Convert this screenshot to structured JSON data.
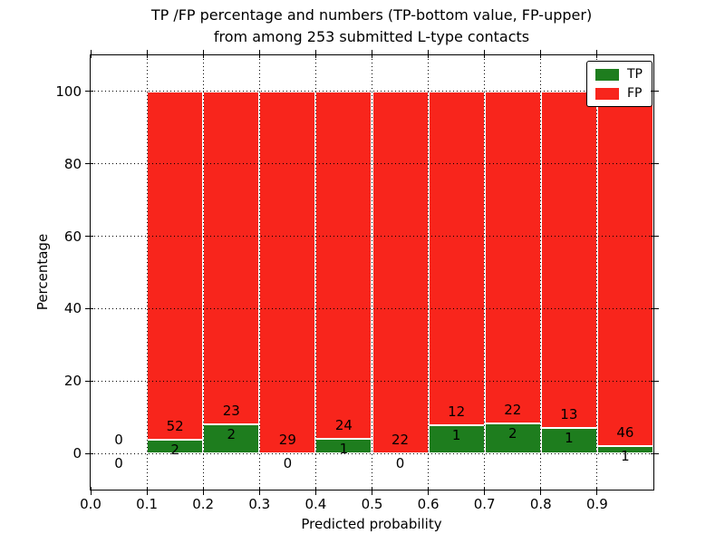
{
  "title": {
    "line1": "TP /FP percentage and numbers (TP-bottom value, FP-upper)",
    "line2": "from among 253 submitted L-type contacts"
  },
  "colors": {
    "tp_green": "#1e7d1e",
    "fp_red": "#f8251c",
    "bar_edge": "#ffffff",
    "grid": "#000000",
    "text": "#000000",
    "background": "#ffffff"
  },
  "chart_data": {
    "type": "bar",
    "stacked": true,
    "normalized_to_percent": true,
    "title": "TP /FP percentage and numbers (TP-bottom value, FP-upper) from among 253 submitted L-type contacts",
    "xlabel": "Predicted probability",
    "ylabel": "Percentage",
    "xlim": [
      0.0,
      1.0
    ],
    "ylim": [
      -10,
      110
    ],
    "grid": "dotted",
    "total_contacts": 253,
    "bin_width": 0.1,
    "xticks": {
      "values": [
        0.0,
        0.1,
        0.2,
        0.3,
        0.4,
        0.5,
        0.6,
        0.7,
        0.8,
        0.9
      ],
      "labels": [
        "0.0",
        "0.1",
        "0.2",
        "0.3",
        "0.4",
        "0.5",
        "0.6",
        "0.7",
        "0.8",
        "0.9"
      ]
    },
    "yticks": {
      "values": [
        0,
        20,
        40,
        60,
        80,
        100
      ],
      "labels": [
        "0",
        "20",
        "40",
        "60",
        "80",
        "100"
      ]
    },
    "legend": {
      "position": "upper right",
      "entries": [
        {
          "label": "TP",
          "color": "#1e7d1e"
        },
        {
          "label": "FP",
          "color": "#f8251c"
        }
      ]
    },
    "bins": [
      {
        "x0": 0.0,
        "x1": 0.1,
        "tp": 0,
        "fp": 0
      },
      {
        "x0": 0.1,
        "x1": 0.2,
        "tp": 2,
        "fp": 52
      },
      {
        "x0": 0.2,
        "x1": 0.3,
        "tp": 2,
        "fp": 23
      },
      {
        "x0": 0.3,
        "x1": 0.4,
        "tp": 0,
        "fp": 29
      },
      {
        "x0": 0.4,
        "x1": 0.5,
        "tp": 1,
        "fp": 24
      },
      {
        "x0": 0.5,
        "x1": 0.6,
        "tp": 0,
        "fp": 22
      },
      {
        "x0": 0.6,
        "x1": 0.7,
        "tp": 1,
        "fp": 12
      },
      {
        "x0": 0.7,
        "x1": 0.8,
        "tp": 2,
        "fp": 22
      },
      {
        "x0": 0.8,
        "x1": 0.9,
        "tp": 1,
        "fp": 13
      },
      {
        "x0": 0.9,
        "x1": 1.0,
        "tp": 1,
        "fp": 46
      }
    ]
  }
}
